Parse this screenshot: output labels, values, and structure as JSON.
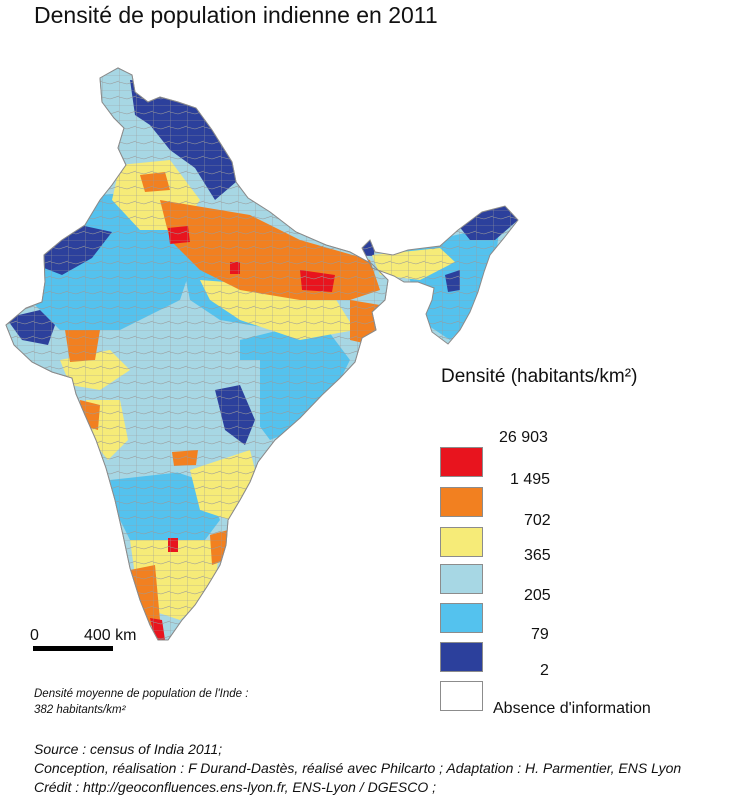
{
  "title": "Densité de population indienne en 2011",
  "colors": {
    "c1": "#e8141e",
    "c2": "#f28020",
    "c3": "#f6eb78",
    "c4": "#a7d7e4",
    "c5": "#54c2ee",
    "c6": "#2c409c",
    "nodata": "#ffffff",
    "border": "#b5b5b5"
  },
  "legend": {
    "title": "Densité (habitants/km²)",
    "breaks": [
      "26 903",
      "1 495",
      "702",
      "365",
      "205",
      "79",
      "2"
    ],
    "classes": [
      {
        "color": "#e8141e"
      },
      {
        "color": "#f28020"
      },
      {
        "color": "#f6eb78"
      },
      {
        "color": "#a7d7e4"
      },
      {
        "color": "#54c2ee"
      },
      {
        "color": "#2c409c"
      }
    ],
    "nodata_label": "Absence d'information"
  },
  "scale": {
    "zero": "0",
    "distance": "400 km"
  },
  "note": {
    "line1": "Densité moyenne de population de l'Inde :",
    "line2": "382 habitants/km²"
  },
  "footer": {
    "source": "Source : census of India 2011;",
    "conception": "Conception, réalisation : F Durand-Dastès, réalisé avec Philcarto ; Adaptation : H. Parmentier, ENS Lyon",
    "credit": "Crédit : http://geoconfluences.ens-lyon.fr, ENS-Lyon / DGESCO ;"
  }
}
